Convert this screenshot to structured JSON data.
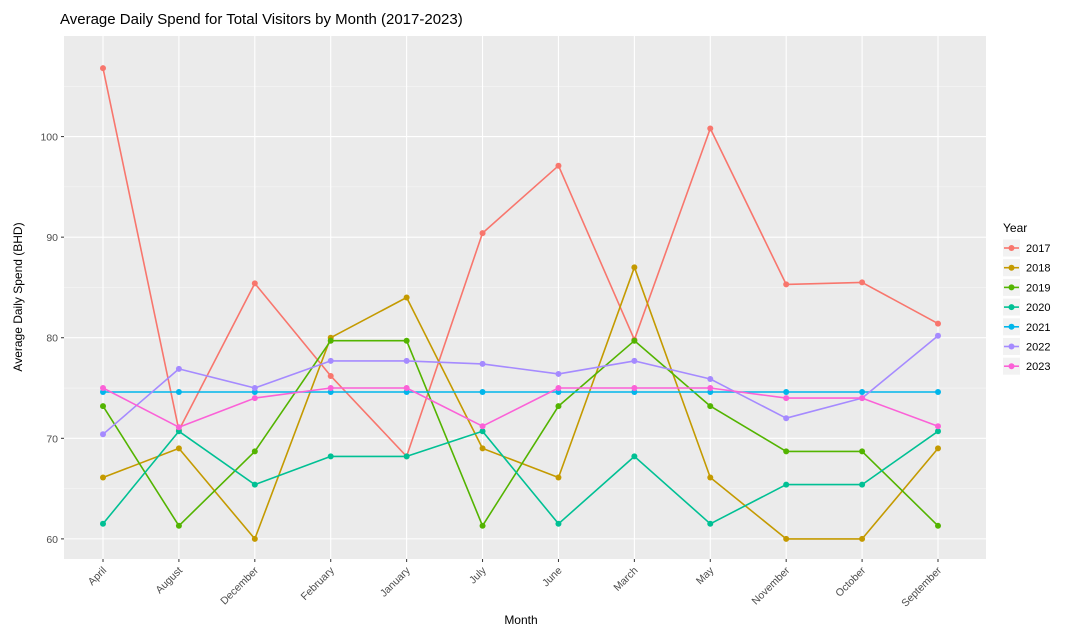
{
  "chart_data": {
    "type": "line",
    "title": "Average Daily Spend for Total Visitors by Month (2017-2023)",
    "xlabel": "Month",
    "ylabel": "Average Daily Spend (BHD)",
    "categories": [
      "April",
      "August",
      "December",
      "February",
      "January",
      "July",
      "June",
      "March",
      "May",
      "November",
      "October",
      "September"
    ],
    "ylim": [
      58,
      110
    ],
    "yticks": [
      60,
      70,
      80,
      90,
      100
    ],
    "grid": true,
    "legend": {
      "title": "Year",
      "position": "right"
    },
    "series": [
      {
        "name": "2017",
        "color": "#F8766D",
        "values": [
          106.8,
          70.8,
          85.4,
          76.2,
          68.2,
          90.4,
          97.1,
          79.8,
          100.8,
          85.3,
          85.5,
          81.4
        ]
      },
      {
        "name": "2018",
        "color": "#C49A00",
        "values": [
          66.1,
          69.0,
          60.0,
          80.0,
          84.0,
          69.0,
          66.1,
          87.0,
          66.1,
          60.0,
          60.0,
          69.0
        ]
      },
      {
        "name": "2019",
        "color": "#53B400",
        "values": [
          73.2,
          61.3,
          68.7,
          79.7,
          79.7,
          61.3,
          73.2,
          79.7,
          73.2,
          68.7,
          68.7,
          61.3
        ]
      },
      {
        "name": "2020",
        "color": "#00C094",
        "values": [
          61.5,
          70.7,
          65.4,
          68.2,
          68.2,
          70.7,
          61.5,
          68.2,
          61.5,
          65.4,
          65.4,
          70.7
        ]
      },
      {
        "name": "2021",
        "color": "#00B6EB",
        "values": [
          74.6,
          74.6,
          74.6,
          74.6,
          74.6,
          74.6,
          74.6,
          74.6,
          74.6,
          74.6,
          74.6,
          74.6
        ]
      },
      {
        "name": "2022",
        "color": "#A58AFF",
        "values": [
          70.4,
          76.9,
          75.0,
          77.7,
          77.7,
          77.4,
          76.4,
          77.7,
          75.9,
          72.0,
          74.0,
          80.2
        ]
      },
      {
        "name": "2023",
        "color": "#FB61D7",
        "values": [
          75.0,
          71.1,
          74.0,
          75.0,
          75.0,
          71.2,
          75.0,
          75.0,
          75.0,
          74.0,
          74.0,
          71.2
        ]
      }
    ]
  }
}
